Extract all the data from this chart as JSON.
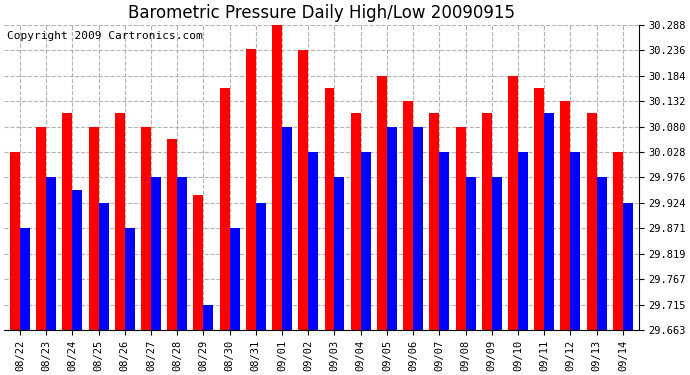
{
  "title": "Barometric Pressure Daily High/Low 20090915",
  "copyright": "Copyright 2009 Cartronics.com",
  "dates": [
    "08/22",
    "08/23",
    "08/24",
    "08/25",
    "08/26",
    "08/27",
    "08/28",
    "08/29",
    "08/30",
    "08/31",
    "09/01",
    "09/02",
    "09/03",
    "09/04",
    "09/05",
    "09/06",
    "09/07",
    "09/08",
    "09/09",
    "09/10",
    "09/11",
    "09/12",
    "09/13",
    "09/14"
  ],
  "highs": [
    30.028,
    30.08,
    30.108,
    30.08,
    30.108,
    30.08,
    30.055,
    29.94,
    30.16,
    30.24,
    30.288,
    30.236,
    30.16,
    30.108,
    30.184,
    30.132,
    30.108,
    30.08,
    30.108,
    30.184,
    30.16,
    30.132,
    30.108,
    30.028
  ],
  "lows": [
    29.871,
    29.976,
    29.95,
    29.924,
    29.871,
    29.976,
    29.976,
    29.715,
    29.871,
    29.924,
    30.08,
    30.028,
    29.976,
    30.028,
    30.08,
    30.08,
    30.028,
    29.976,
    29.976,
    30.028,
    30.108,
    30.028,
    29.976,
    29.924
  ],
  "ymin": 29.663,
  "ymax": 30.288,
  "yticks": [
    29.663,
    29.715,
    29.767,
    29.819,
    29.871,
    29.924,
    29.976,
    30.028,
    30.08,
    30.132,
    30.184,
    30.236,
    30.288
  ],
  "bar_color_high": "#ff0000",
  "bar_color_low": "#0000ff",
  "background_color": "#ffffff",
  "grid_color": "#aaaaaa",
  "title_fontsize": 12,
  "copyright_fontsize": 8
}
